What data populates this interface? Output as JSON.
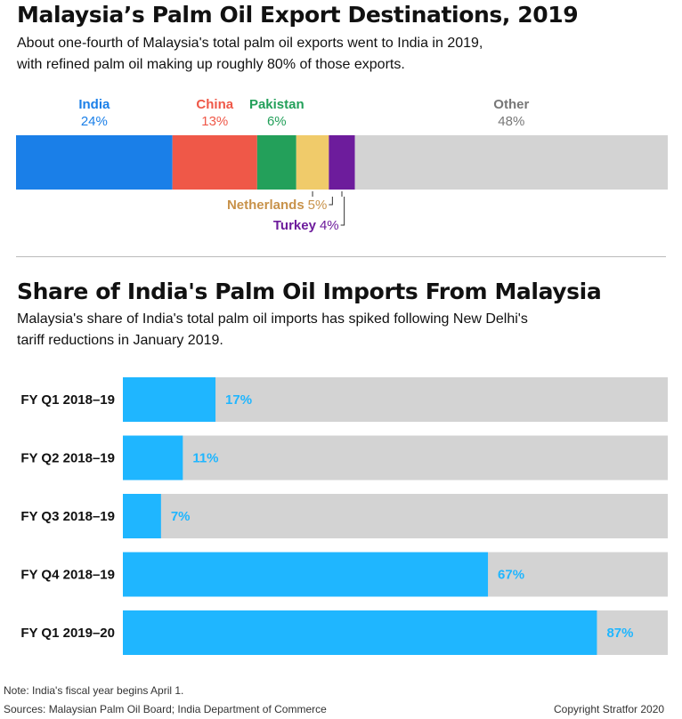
{
  "section1": {
    "title": "Malaysia’s Palm Oil Export Destinations, 2019",
    "subtitle_line1": "About one-fourth of Malaysia's total palm oil exports went to India in 2019,",
    "subtitle_line2": "with refined palm oil making up roughly 80% of those exports."
  },
  "section2": {
    "title": "Share of India's Palm Oil Imports From Malaysia",
    "subtitle_line1": "Malaysia's share of India's total palm oil imports has spiked following New Delhi's",
    "subtitle_line2": "tariff reductions in January 2019."
  },
  "footer": {
    "note": "Note: India's fiscal year begins April 1.",
    "sources": "Sources: Malaysian Palm Oil Board; India Department of Commerce",
    "copyright": "Copyright Stratfor 2020"
  },
  "chart_data": [
    {
      "type": "bar",
      "orientation": "horizontal-stacked",
      "title": "Malaysia’s Palm Oil Export Destinations, 2019",
      "unit": "%",
      "segments": [
        {
          "name": "India",
          "value": 24,
          "label": "24%",
          "color": "#1a7fe8"
        },
        {
          "name": "China",
          "value": 13,
          "label": "13%",
          "color": "#ef5848"
        },
        {
          "name": "Pakistan",
          "value": 6,
          "label": "6%",
          "color": "#23a05a"
        },
        {
          "name": "Netherlands",
          "value": 5,
          "label": "5%",
          "color": "#f0cb6a",
          "label_color": "#c8924a"
        },
        {
          "name": "Turkey",
          "value": 4,
          "label": "4%",
          "color": "#6d1c9c"
        },
        {
          "name": "Other",
          "value": 48,
          "label": "48%",
          "color": "#d3d3d3",
          "label_color": "#777777"
        }
      ]
    },
    {
      "type": "bar",
      "orientation": "horizontal",
      "title": "Share of India's Palm Oil Imports From Malaysia",
      "categories": [
        "FY Q1 2018–19",
        "FY Q2 2018–19",
        "FY Q3 2018–19",
        "FY Q4 2018–19",
        "FY Q1 2019–20"
      ],
      "values": [
        17,
        11,
        7,
        67,
        87
      ],
      "labels": [
        "17%",
        "11%",
        "7%",
        "67%",
        "87%"
      ],
      "xlim": [
        0,
        100
      ],
      "bar_color": "#1fb6ff",
      "track_color": "#d3d3d3"
    }
  ]
}
